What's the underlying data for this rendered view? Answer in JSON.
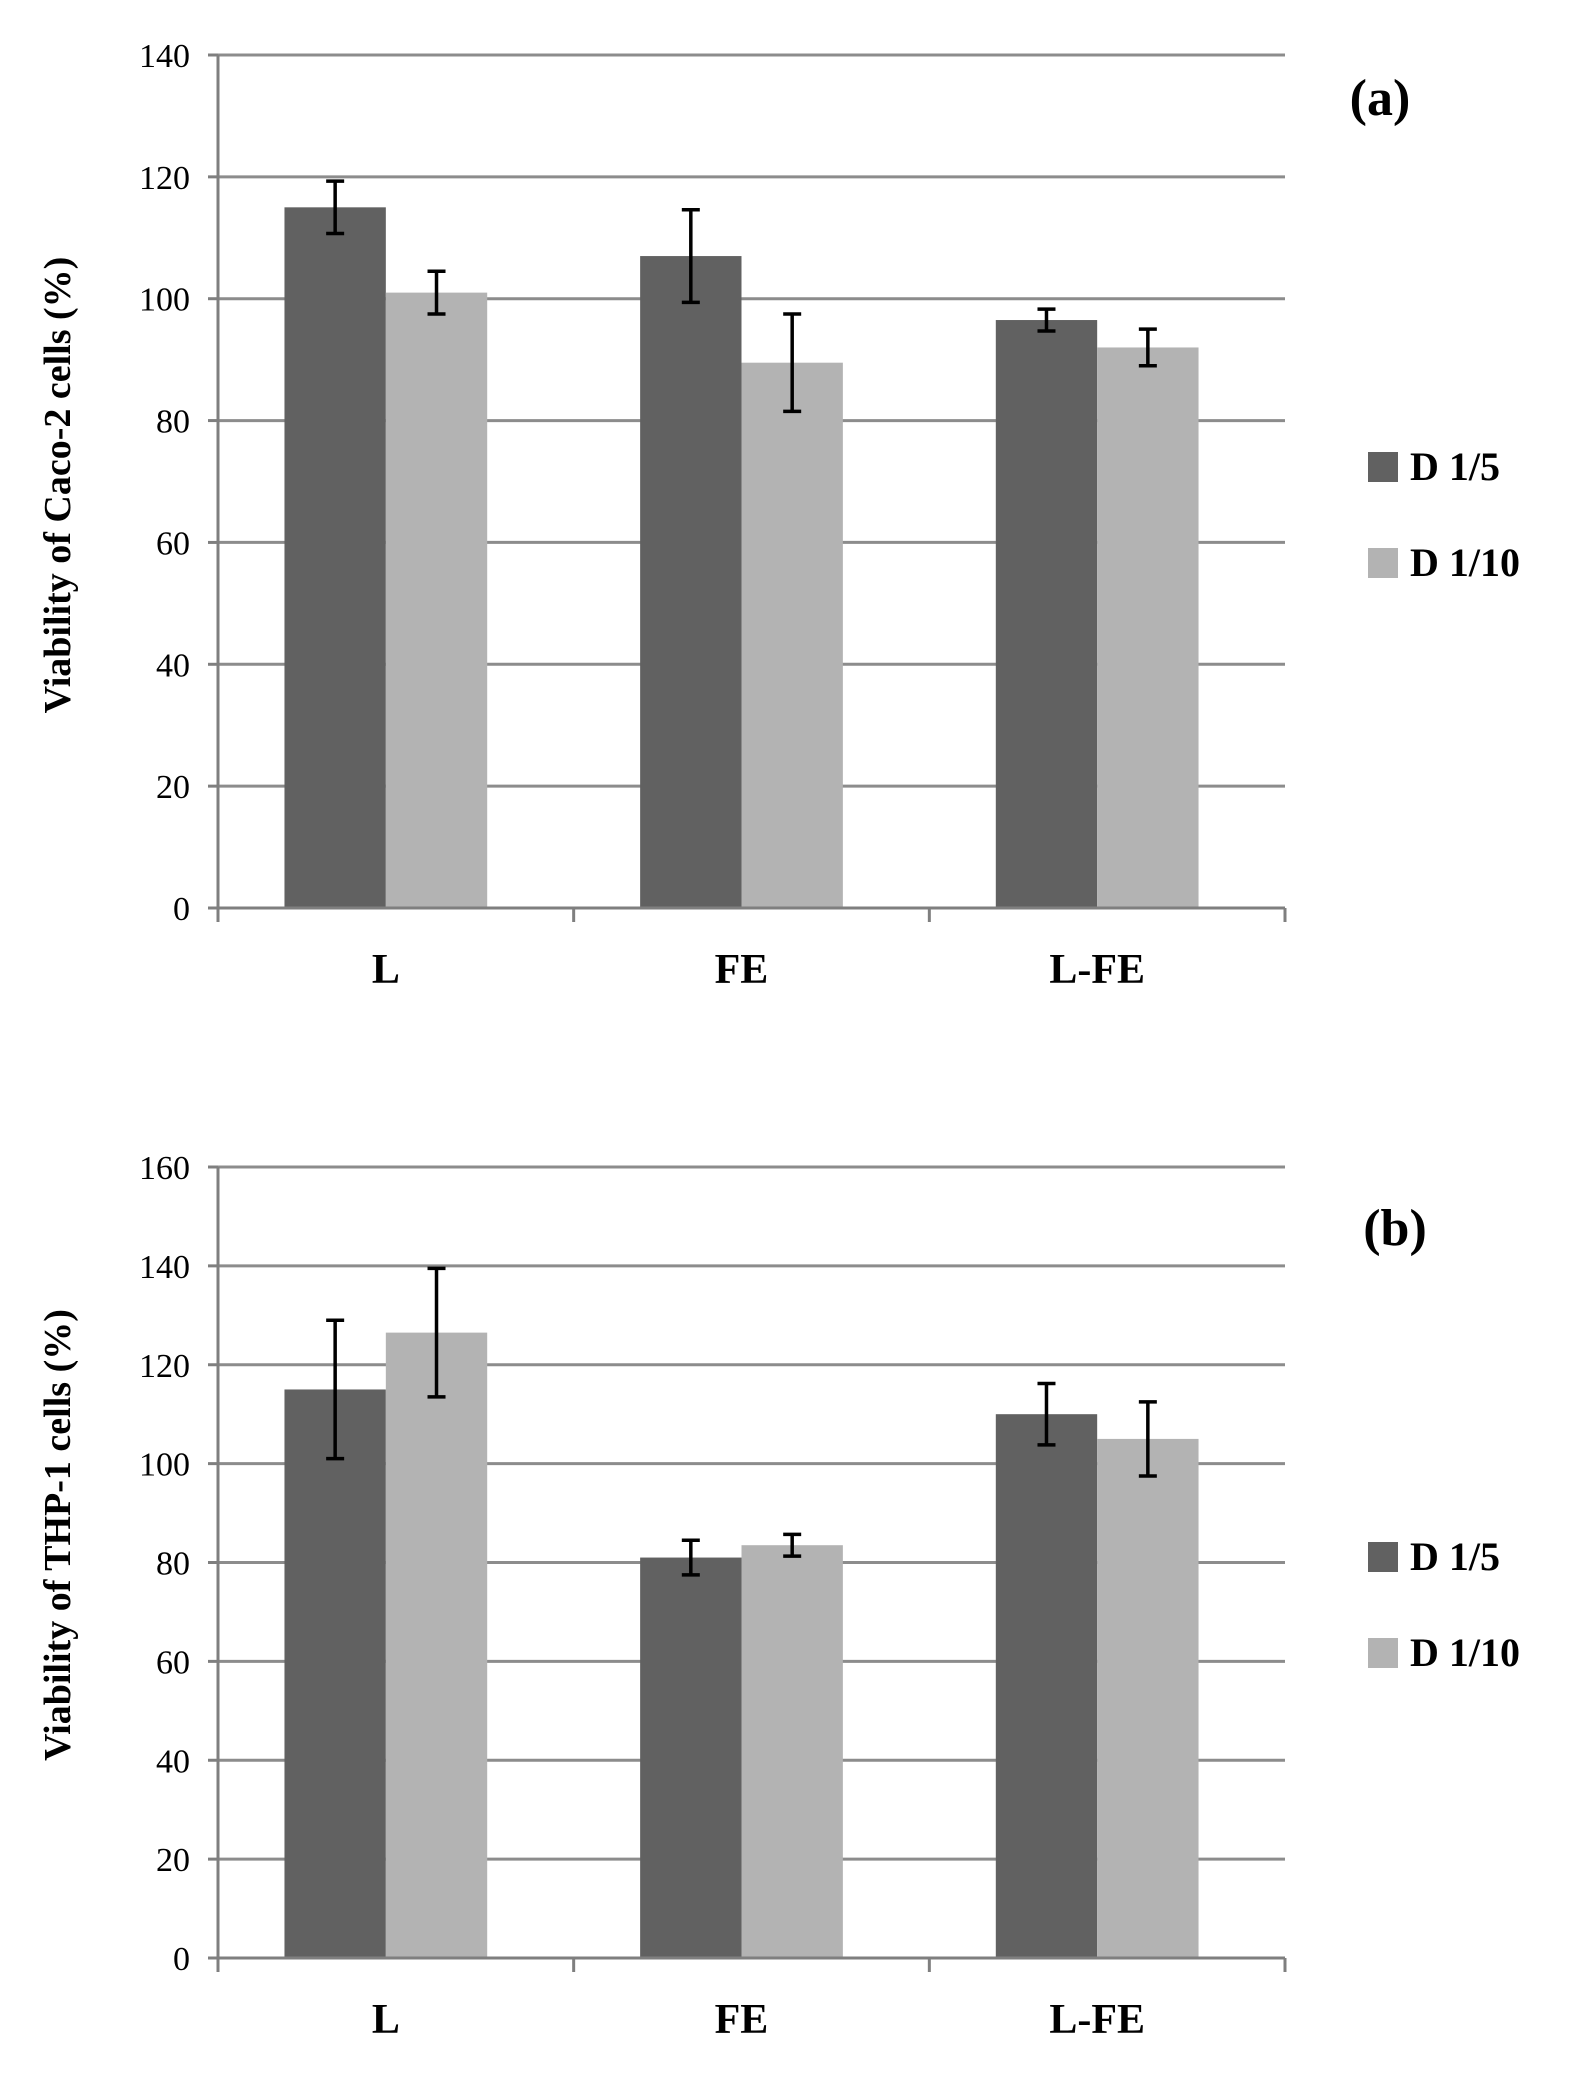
{
  "colors": {
    "series_dark": "#616161",
    "series_light": "#b3b3b3",
    "grid": "#8c8c8c",
    "axis": "#7f7f7f",
    "error_bar": "#000000"
  },
  "chart_data": [
    {
      "type": "bar",
      "panel_label": "(a)",
      "title": "",
      "xlabel": "",
      "ylabel": "Viability of Caco-2 cells (%)",
      "categories": [
        "L",
        "FE",
        "L-FE"
      ],
      "ylim": [
        0,
        140
      ],
      "yticks": [
        "0",
        "20",
        "40",
        "60",
        "80",
        "100",
        "120",
        "140"
      ],
      "grid": true,
      "legend_position": "right",
      "series": [
        {
          "name": "D 1/5",
          "values": [
            115,
            107,
            96.5
          ],
          "errors": [
            4.3,
            7.6,
            1.8
          ]
        },
        {
          "name": "D 1/10",
          "values": [
            101,
            89.5,
            92
          ],
          "errors": [
            3.5,
            8.0,
            3.0
          ]
        }
      ]
    },
    {
      "type": "bar",
      "panel_label": "(b)",
      "title": "",
      "xlabel": "",
      "ylabel": "Viability of THP-1 cells (%)",
      "categories": [
        "L",
        "FE",
        "L-FE"
      ],
      "ylim": [
        0,
        160
      ],
      "yticks": [
        "0",
        "20",
        "40",
        "60",
        "80",
        "100",
        "120",
        "140",
        "160"
      ],
      "grid": true,
      "legend_position": "right",
      "series": [
        {
          "name": "D 1/5",
          "values": [
            115,
            81,
            110
          ],
          "errors": [
            14,
            3.5,
            6.2
          ]
        },
        {
          "name": "D 1/10",
          "values": [
            126.5,
            83.5,
            105
          ],
          "errors": [
            13,
            2.2,
            7.5
          ]
        }
      ]
    }
  ]
}
